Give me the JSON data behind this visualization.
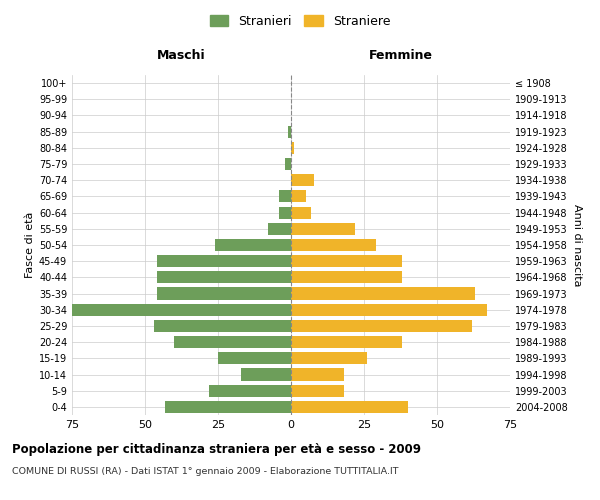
{
  "age_groups": [
    "0-4",
    "5-9",
    "10-14",
    "15-19",
    "20-24",
    "25-29",
    "30-34",
    "35-39",
    "40-44",
    "45-49",
    "50-54",
    "55-59",
    "60-64",
    "65-69",
    "70-74",
    "75-79",
    "80-84",
    "85-89",
    "90-94",
    "95-99",
    "100+"
  ],
  "birth_years": [
    "2004-2008",
    "1999-2003",
    "1994-1998",
    "1989-1993",
    "1984-1988",
    "1979-1983",
    "1974-1978",
    "1969-1973",
    "1964-1968",
    "1959-1963",
    "1954-1958",
    "1949-1953",
    "1944-1948",
    "1939-1943",
    "1934-1938",
    "1929-1933",
    "1924-1928",
    "1919-1923",
    "1914-1918",
    "1909-1913",
    "≤ 1908"
  ],
  "males": [
    43,
    28,
    17,
    25,
    40,
    47,
    75,
    46,
    46,
    46,
    26,
    8,
    4,
    4,
    0,
    2,
    0,
    1,
    0,
    0,
    0
  ],
  "females": [
    40,
    18,
    18,
    26,
    38,
    62,
    67,
    63,
    38,
    38,
    29,
    22,
    7,
    5,
    8,
    0,
    1,
    0,
    0,
    0,
    0
  ],
  "male_color": "#6d9e5a",
  "female_color": "#f0b429",
  "background_color": "#ffffff",
  "grid_color": "#cccccc",
  "title": "Popolazione per cittadinanza straniera per età e sesso - 2009",
  "subtitle": "COMUNE DI RUSSI (RA) - Dati ISTAT 1° gennaio 2009 - Elaborazione TUTTITALIA.IT",
  "xlabel_left": "Maschi",
  "xlabel_right": "Femmine",
  "ylabel_left": "Fasce di età",
  "ylabel_right": "Anni di nascita",
  "legend_male": "Stranieri",
  "legend_female": "Straniere",
  "xlim": 75
}
